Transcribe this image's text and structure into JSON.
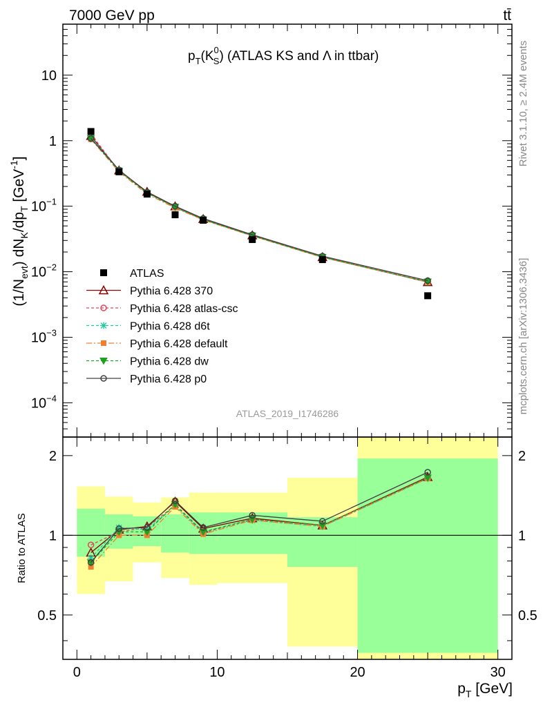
{
  "header": {
    "energy_label": "7000 GeV pp",
    "process_label": "tt̄"
  },
  "side_labels": {
    "rivet": "Rivet 3.1.10, ≥ 2.4M events",
    "source": "mcplots.cern.ch [arXiv:1306.3436]"
  },
  "chart_data": {
    "type": "line",
    "title_main": "p",
    "title_sub": "T",
    "title_k": "(K",
    "title_k_sup": "0",
    "title_k_sub": "S",
    "title_rest": ") (ATLAS KS and Λ in ttbar)",
    "analysis_id": "ATLAS_2019_I1746286",
    "ylabel_main": "(1/N",
    "ylabel_sub1": "evt",
    "ylabel_mid": ") dN",
    "ylabel_sub2": "K",
    "ylabel_mid2": "/dp",
    "ylabel_sub3": "T",
    "ylabel_unit": " [GeV",
    "ylabel_unit_sup": "-1",
    "ylabel_end": "]",
    "ratio_ylabel": "Ratio to ATLAS",
    "xlabel_main": "p",
    "xlabel_sub": "T",
    "xlabel_unit": " [GeV]",
    "xlim": [
      -1,
      31
    ],
    "ylim": [
      3e-05,
      60
    ],
    "yscale": "log",
    "ratio_ylim": [
      0.34,
      2.35
    ],
    "x_ticks": [
      "0",
      "10",
      "20",
      "30"
    ],
    "y_ticks": [
      {
        "value": 0.0001,
        "base": "10",
        "exp": "−4"
      },
      {
        "value": 0.001,
        "base": "10",
        "exp": "−3"
      },
      {
        "value": 0.01,
        "base": "10",
        "exp": "−2"
      },
      {
        "value": 0.1,
        "base": "10",
        "exp": "−1"
      },
      {
        "value": 1,
        "base": "1",
        "exp": ""
      },
      {
        "value": 10,
        "base": "10",
        "exp": ""
      }
    ],
    "ratio_ticks": [
      "0.5",
      "1",
      "2"
    ],
    "bins": [
      [
        0,
        2
      ],
      [
        2,
        4
      ],
      [
        4,
        6
      ],
      [
        6,
        8
      ],
      [
        8,
        10
      ],
      [
        10,
        15
      ],
      [
        15,
        20
      ],
      [
        20,
        30
      ]
    ],
    "x": [
      1,
      3,
      5,
      7,
      9,
      12.5,
      17.5,
      25
    ],
    "data": {
      "name": "ATLAS",
      "values": [
        1.38,
        0.335,
        0.153,
        0.074,
        0.061,
        0.031,
        0.0153,
        0.0043
      ]
    },
    "band_green": [
      [
        0.83,
        1.26
      ],
      [
        0.89,
        1.2
      ],
      [
        0.91,
        1.18
      ],
      [
        0.86,
        1.2
      ],
      [
        0.85,
        1.22
      ],
      [
        0.85,
        1.22
      ],
      [
        0.76,
        1.17
      ],
      [
        0.36,
        1.95
      ]
    ],
    "band_yellow": [
      [
        0.6,
        1.53
      ],
      [
        0.67,
        1.4
      ],
      [
        0.79,
        1.33
      ],
      [
        0.69,
        1.39
      ],
      [
        0.65,
        1.45
      ],
      [
        0.66,
        1.45
      ],
      [
        0.38,
        1.65
      ],
      [
        0.34,
        2.35
      ]
    ],
    "series": [
      {
        "name": "Pythia 6.428 370",
        "color": "#8b0000",
        "dash": "",
        "marker": "triangle-open",
        "values": [
          1.18,
          0.352,
          0.166,
          0.0995,
          0.0638,
          0.0359,
          0.0167,
          0.00694
        ],
        "ratio": [
          0.86,
          1.05,
          1.08,
          1.34,
          1.06,
          1.16,
          1.09,
          1.66
        ]
      },
      {
        "name": "Pythia 6.428 atlas-csc",
        "color": "#e8405a",
        "dash": "4,3",
        "marker": "circle-open",
        "values": [
          1.27,
          0.345,
          0.163,
          0.096,
          0.0622,
          0.0355,
          0.0168,
          0.00705
        ],
        "ratio": [
          0.92,
          1.03,
          1.07,
          1.3,
          1.02,
          1.15,
          1.09,
          1.65
        ]
      },
      {
        "name": "Pythia 6.428 d6t",
        "color": "#20c8a0",
        "dash": "4,3",
        "marker": "star",
        "values": [
          1.14,
          0.358,
          0.161,
          0.095,
          0.0628,
          0.0352,
          0.0166,
          0.00697
        ],
        "ratio": [
          0.82,
          1.07,
          1.05,
          1.29,
          1.03,
          1.14,
          1.08,
          1.64
        ]
      },
      {
        "name": "Pythia 6.428 default",
        "color": "#f07f30",
        "dash": "8,3,2,3",
        "marker": "square",
        "values": [
          1.05,
          0.335,
          0.153,
          0.094,
          0.0617,
          0.0352,
          0.0165,
          0.00697
        ],
        "ratio": [
          0.76,
          1.0,
          1.0,
          1.28,
          1.01,
          1.14,
          1.08,
          1.64
        ]
      },
      {
        "name": "Pythia 6.428 dw",
        "color": "#20a020",
        "dash": "4,3",
        "marker": "triangle-down",
        "values": [
          1.08,
          0.345,
          0.158,
          0.0975,
          0.0625,
          0.0355,
          0.0167,
          0.00705
        ],
        "ratio": [
          0.79,
          1.03,
          1.03,
          1.31,
          1.03,
          1.15,
          1.09,
          1.65
        ]
      },
      {
        "name": "Pythia 6.428 p0",
        "color": "#404040",
        "dash": "",
        "marker": "circle-open",
        "values": [
          1.08,
          0.357,
          0.164,
          0.1,
          0.065,
          0.0367,
          0.0173,
          0.0073
        ],
        "ratio": [
          0.79,
          1.06,
          1.07,
          1.35,
          1.07,
          1.19,
          1.13,
          1.73
        ]
      }
    ]
  }
}
